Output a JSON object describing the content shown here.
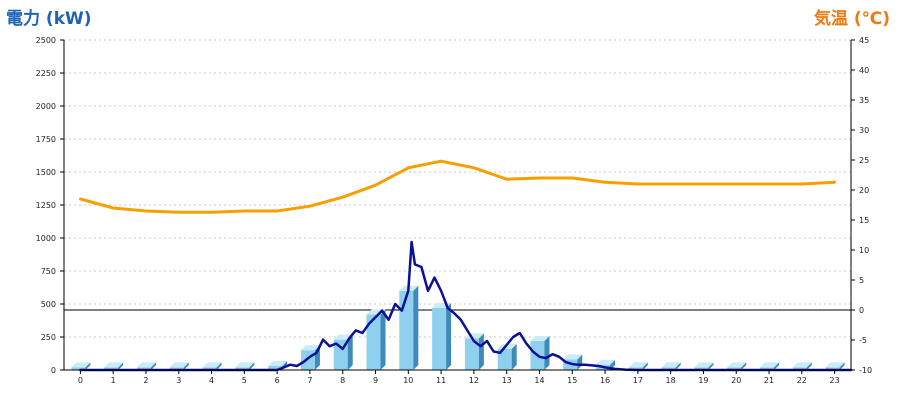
{
  "axis_titles": {
    "left": "電力 (kW)",
    "right": "気温 (℃)"
  },
  "colors": {
    "bar_front": "#8fd0ee",
    "bar_side": "#3f8ab8",
    "bar_top": "#c9ebfa",
    "power_line": "#0b1096",
    "temp_line": "#f5a000",
    "grid": "#c8c8c8",
    "zero_line": "#000000",
    "left_title": "#1f63b4",
    "right_title": "#f07a10"
  },
  "chart_data": {
    "type": "bar",
    "categories": [
      "0",
      "1",
      "2",
      "3",
      "4",
      "5",
      "6",
      "7",
      "8",
      "9",
      "10",
      "11",
      "12",
      "13",
      "14",
      "15",
      "16",
      "17",
      "18",
      "19",
      "20",
      "21",
      "22",
      "23"
    ],
    "left_axis": {
      "ylim": [
        0,
        2500
      ],
      "ticks": [
        "0",
        "250",
        "500",
        "750",
        "1000",
        "1250",
        "1500",
        "1750",
        "2000",
        "2250",
        "2500"
      ]
    },
    "right_axis": {
      "ylim": [
        -10,
        45
      ],
      "ticks": [
        "-10",
        "-5",
        "0",
        "5",
        "10",
        "15",
        "20",
        "25",
        "30",
        "35",
        "40",
        "45"
      ]
    },
    "series": [
      {
        "kind": "bar",
        "axis": "left",
        "values": [
          20,
          20,
          20,
          20,
          20,
          20,
          30,
          150,
          230,
          420,
          600,
          470,
          240,
          160,
          220,
          80,
          40,
          20,
          20,
          20,
          20,
          20,
          20,
          20
        ]
      },
      {
        "kind": "line",
        "axis": "left",
        "x": [
          0,
          6,
          6.2,
          6.4,
          6.6,
          6.8,
          7,
          7.2,
          7.4,
          7.6,
          7.8,
          8,
          8.2,
          8.4,
          8.6,
          8.8,
          9,
          9.2,
          9.4,
          9.6,
          9.8,
          10,
          10.1,
          10.2,
          10.4,
          10.6,
          10.8,
          11,
          11.2,
          11.4,
          11.6,
          11.8,
          12,
          12.2,
          12.4,
          12.6,
          12.8,
          13,
          13.2,
          13.4,
          13.6,
          13.8,
          14,
          14.2,
          14.4,
          14.6,
          14.8,
          15,
          15.2,
          15.4,
          15.6,
          15.8,
          16,
          16.3,
          16.6,
          17,
          23.5
        ],
        "values": [
          0,
          0,
          20,
          40,
          30,
          60,
          100,
          130,
          230,
          180,
          200,
          160,
          240,
          300,
          280,
          350,
          400,
          450,
          380,
          500,
          450,
          600,
          970,
          800,
          780,
          600,
          700,
          600,
          470,
          430,
          380,
          300,
          220,
          180,
          220,
          140,
          130,
          190,
          250,
          280,
          200,
          140,
          100,
          90,
          120,
          100,
          60,
          45,
          40,
          40,
          35,
          30,
          20,
          8,
          3,
          0,
          0
        ]
      },
      {
        "kind": "line",
        "axis": "right",
        "x": [
          0,
          1,
          2,
          3,
          4,
          5,
          6,
          7,
          8,
          9,
          10,
          11,
          12,
          13,
          14,
          15,
          16,
          17,
          18,
          19,
          20,
          21,
          22,
          23
        ],
        "values": [
          18.5,
          17,
          16.5,
          16.3,
          16.3,
          16.5,
          16.5,
          17.3,
          18.8,
          20.8,
          23.7,
          24.8,
          23.7,
          21.8,
          22,
          22,
          21.3,
          21,
          21,
          21,
          21,
          21,
          21,
          21.3
        ]
      }
    ]
  }
}
